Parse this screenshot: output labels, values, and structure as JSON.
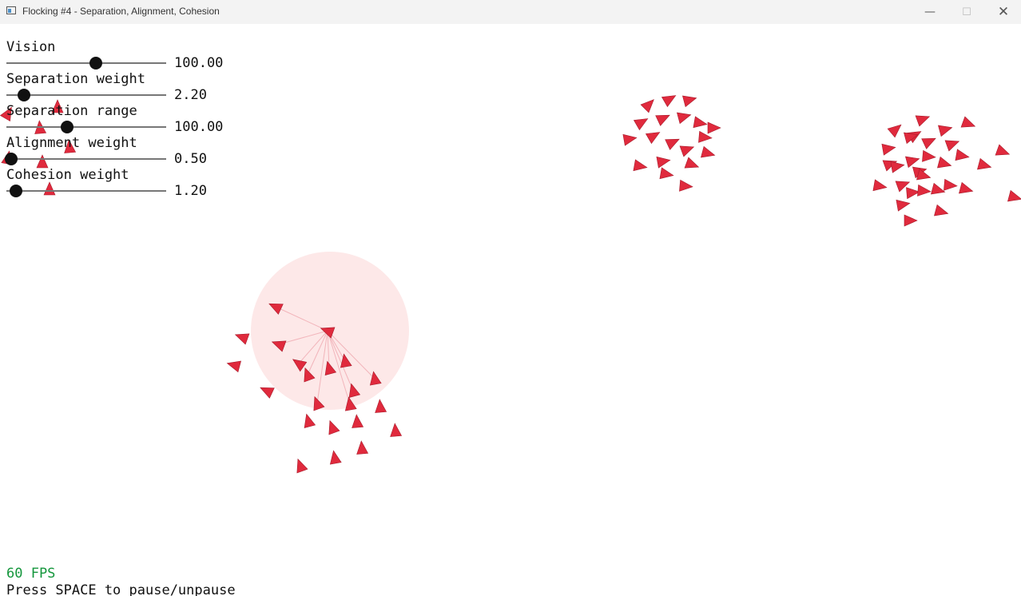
{
  "window": {
    "title": "Flocking #4 - Separation, Alignment, Cohesion",
    "controls": {
      "minimize": "—",
      "maximize": "☐",
      "close": "✕"
    }
  },
  "sliders": [
    {
      "label": "Vision",
      "value": "100.00",
      "position": 0.56
    },
    {
      "label": "Separation weight",
      "value": "2.20",
      "position": 0.11
    },
    {
      "label": "Separation range",
      "value": "100.00",
      "position": 0.38
    },
    {
      "label": "Alignment weight",
      "value": "0.50",
      "position": 0.03
    },
    {
      "label": "Cohesion weight",
      "value": "1.20",
      "position": 0.06
    }
  ],
  "fps_text": "60 FPS",
  "hint_text": "Press SPACE to pause/unpause",
  "colors": {
    "boid": "#e02a3d",
    "boid_outline": "#a81c2c",
    "vision_circle": "#fde8e8",
    "link_line": "#f2b5bb",
    "fps": "#14963c"
  },
  "icons": {
    "app": "app-window-icon",
    "minimize": "minimize-icon",
    "maximize": "maximize-icon",
    "close": "close-icon"
  }
}
